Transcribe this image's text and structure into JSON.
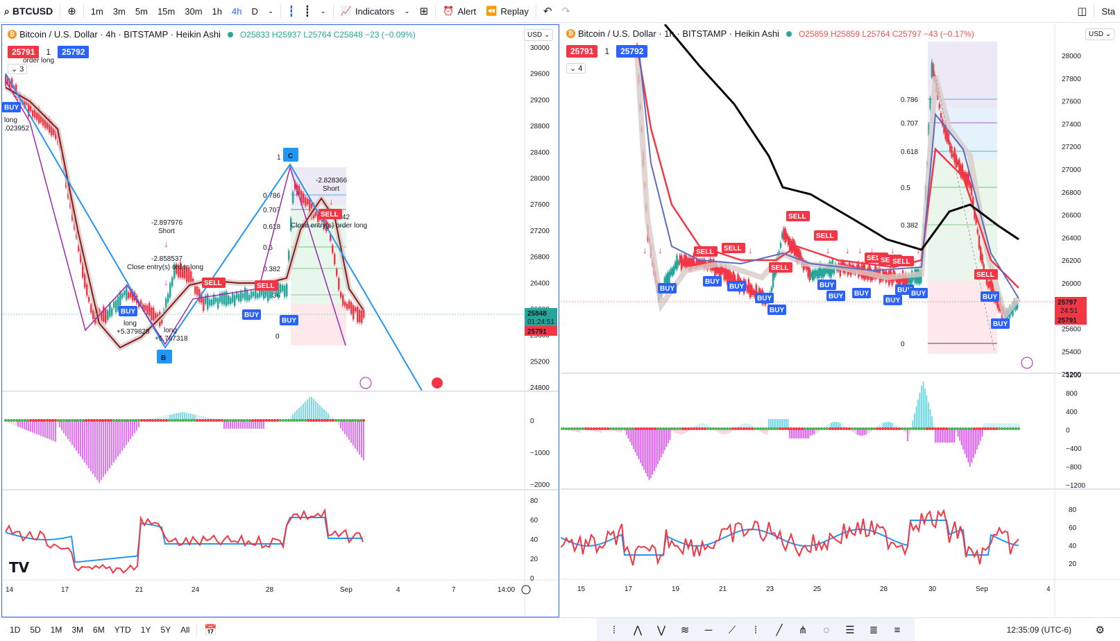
{
  "toolbar": {
    "symbol": "BTCUSD",
    "intervals": [
      "1m",
      "3m",
      "5m",
      "15m",
      "30m",
      "1h",
      "4h",
      "D"
    ],
    "active_interval": "4h",
    "indicators_label": "Indicators",
    "alert_label": "Alert",
    "replay_label": "Replay",
    "right_label": "Sta"
  },
  "left_chart": {
    "title": "Bitcoin / U.S. Dollar · 4h · BITSTAMP · Heikin Ashi",
    "ohlc": "O25833 H25937 L25764 C25848 −23 (−0.09%)",
    "bid": "25791",
    "spread": "1",
    "ask": "25792",
    "collapse_count": "3",
    "currency": "USD",
    "price_ticks": [
      "30000",
      "29600",
      "29200",
      "28800",
      "28400",
      "28000",
      "27600",
      "27200",
      "26800",
      "26400",
      "26000",
      "25600",
      "25200",
      "24800"
    ],
    "last_price": "25848",
    "countdown": "01:24:51",
    "bid_price_tag": "25791",
    "macd_ticks": [
      "0",
      "−1000",
      "−2000"
    ],
    "rsi_ticks": [
      "80",
      "60",
      "40",
      "20",
      "0"
    ],
    "time_ticks": [
      "14",
      "17",
      "21",
      "24",
      "28",
      "Sep",
      "4",
      "7",
      "14:00"
    ],
    "pattern_points": [
      "B",
      "C",
      "1",
      "0"
    ],
    "fib_levels": [
      "0.786",
      "0.707",
      "0.618",
      "0.5",
      "0.382",
      "0.236"
    ],
    "annotations": {
      "long_top": "long",
      "long_top_val": ".023952",
      "order_long_top": "order long",
      "short1_val": "-2.897976",
      "short1": "Short",
      "close1_val": "-2.858537",
      "close1": "Close entry(s) order long",
      "long_mid1": "long",
      "long_mid1_val": "+5.379828",
      "long_mid2": "long",
      "long_mid2_val": "+5.767318",
      "short2_val": "-2.828366",
      "short2": "Short",
      "close2_val": "-2.869342",
      "close2": "Close entry(s) order long"
    },
    "signals": {
      "buy": "BUY",
      "sell": "SELL"
    }
  },
  "right_chart": {
    "title": "Bitcoin / U.S. Dollar · 1h · BITSTAMP · Heikin Ashi",
    "ohlc": "O25859 H25859 L25764 C25797 −43 (−0.17%)",
    "bid": "25791",
    "spread": "1",
    "ask": "25792",
    "collapse_count": "4",
    "currency": "USD",
    "price_ticks": [
      "28000",
      "27800",
      "27600",
      "27400",
      "27200",
      "27000",
      "26800",
      "26600",
      "26400",
      "26200",
      "26000",
      "25800",
      "25600",
      "25400",
      "25200"
    ],
    "last_price": "25797",
    "countdown": "24:51",
    "bid_price_tag": "25791",
    "macd_ticks": [
      "1200",
      "800",
      "400",
      "0",
      "−400",
      "−800",
      "−1200"
    ],
    "rsi_ticks": [
      "80",
      "60",
      "40",
      "20"
    ],
    "time_ticks": [
      "15",
      "17",
      "19",
      "21",
      "23",
      "25",
      "28",
      "30",
      "Sep",
      "4"
    ],
    "fib_levels": [
      "0.786",
      "0.707",
      "0.618",
      "0.5",
      "0.382",
      "0"
    ],
    "signals": {
      "buy": "BUY",
      "sell": "SELL"
    }
  },
  "bottombar": {
    "ranges": [
      "1D",
      "5D",
      "1M",
      "3M",
      "6M",
      "YTD",
      "1Y",
      "5Y",
      "All"
    ],
    "clock": "12:35:09 (UTC-6)"
  },
  "colors": {
    "blue": "#2962ff",
    "line_blue": "#2196f3",
    "red": "#f23645",
    "green": "#26a69a",
    "purple": "#9c27b0",
    "black": "#000000"
  }
}
